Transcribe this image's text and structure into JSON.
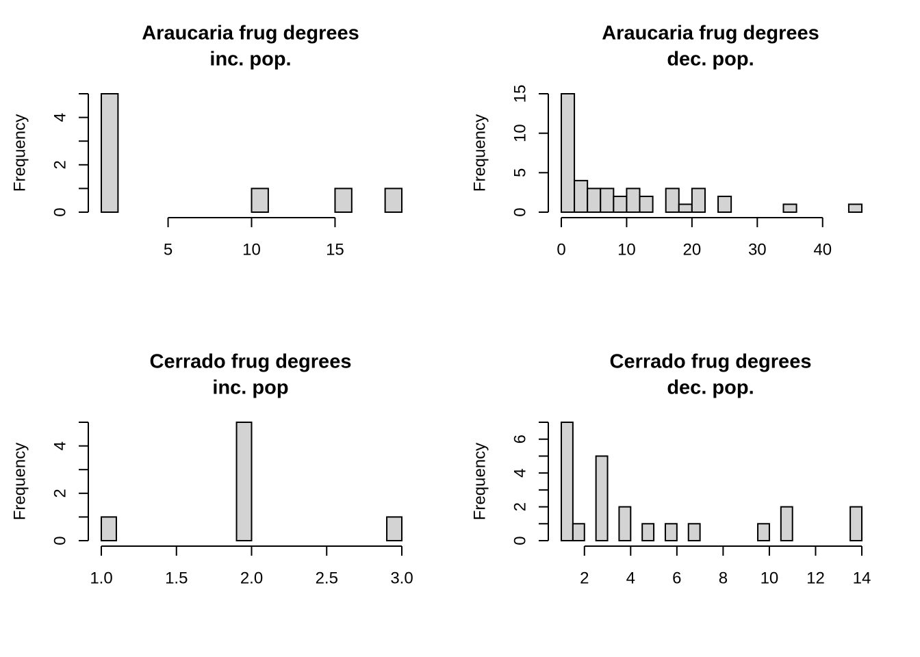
{
  "chart_data": [
    {
      "type": "bar",
      "title_lines": [
        "Araucaria frug degrees",
        "inc. pop."
      ],
      "xlabel": "",
      "ylabel": "Frequency",
      "bin_edges": [
        1,
        2,
        3,
        4,
        5,
        6,
        7,
        8,
        9,
        10,
        11,
        12,
        13,
        14,
        15,
        16,
        17,
        18,
        19
      ],
      "counts": [
        5,
        0,
        0,
        0,
        0,
        0,
        0,
        0,
        0,
        1,
        0,
        0,
        0,
        0,
        1,
        0,
        0,
        1
      ],
      "xlim": [
        1,
        19
      ],
      "ylim": [
        0,
        5
      ],
      "x_ticks": [
        5,
        10,
        15
      ],
      "x_tick_labels": [
        "5",
        "10",
        "15"
      ],
      "y_ticks": [
        0,
        1,
        2,
        3,
        4,
        5
      ],
      "y_tick_labels": [
        "0",
        "2",
        "4"
      ],
      "y_labeled_ticks": [
        0,
        2,
        4
      ]
    },
    {
      "type": "bar",
      "title_lines": [
        "Araucaria frug degrees",
        "dec. pop."
      ],
      "xlabel": "",
      "ylabel": "Frequency",
      "bin_edges": [
        0,
        2,
        4,
        6,
        8,
        10,
        12,
        14,
        16,
        18,
        20,
        22,
        24,
        26,
        28,
        30,
        32,
        34,
        36,
        38,
        40,
        42,
        44,
        46
      ],
      "counts": [
        15,
        4,
        3,
        3,
        2,
        3,
        2,
        0,
        3,
        1,
        3,
        0,
        2,
        0,
        0,
        0,
        0,
        1,
        0,
        0,
        0,
        0,
        1
      ],
      "xlim": [
        0,
        46
      ],
      "ylim": [
        0,
        15
      ],
      "x_ticks": [
        0,
        10,
        20,
        30,
        40
      ],
      "x_tick_labels": [
        "0",
        "10",
        "20",
        "30",
        "40"
      ],
      "y_ticks": [
        0,
        5,
        10,
        15
      ],
      "y_tick_labels": [
        "0",
        "5",
        "10",
        "15"
      ],
      "y_labeled_ticks": [
        0,
        5,
        10,
        15
      ]
    },
    {
      "type": "bar",
      "title_lines": [
        "Cerrado frug degrees",
        "inc. pop"
      ],
      "xlabel": "",
      "ylabel": "Frequency",
      "bin_edges": [
        1.0,
        1.1,
        1.2,
        1.3,
        1.4,
        1.5,
        1.6,
        1.7,
        1.8,
        1.9,
        2.0,
        2.1,
        2.2,
        2.3,
        2.4,
        2.5,
        2.6,
        2.7,
        2.8,
        2.9,
        3.0
      ],
      "counts": [
        1,
        0,
        0,
        0,
        0,
        0,
        0,
        0,
        0,
        5,
        0,
        0,
        0,
        0,
        0,
        0,
        0,
        0,
        0,
        1
      ],
      "xlim": [
        1.0,
        3.0
      ],
      "ylim": [
        0,
        5
      ],
      "x_ticks": [
        1.0,
        1.5,
        2.0,
        2.5,
        3.0
      ],
      "x_tick_labels": [
        "1.0",
        "1.5",
        "2.0",
        "2.5",
        "3.0"
      ],
      "y_ticks": [
        0,
        1,
        2,
        3,
        4,
        5
      ],
      "y_tick_labels": [
        "0",
        "2",
        "4"
      ],
      "y_labeled_ticks": [
        0,
        2,
        4
      ]
    },
    {
      "type": "bar",
      "title_lines": [
        "Cerrado frug degrees",
        "dec. pop."
      ],
      "xlabel": "",
      "ylabel": "Frequency",
      "bin_edges": [
        1.0,
        1.5,
        2.0,
        2.5,
        3.0,
        3.5,
        4.0,
        4.5,
        5.0,
        5.5,
        6.0,
        6.5,
        7.0,
        7.5,
        8.0,
        8.5,
        9.0,
        9.5,
        10.0,
        10.5,
        11.0,
        11.5,
        12.0,
        12.5,
        13.0,
        13.5,
        14.0
      ],
      "counts": [
        7,
        1,
        0,
        5,
        0,
        2,
        0,
        1,
        0,
        1,
        0,
        1,
        0,
        0,
        0,
        0,
        0,
        1,
        0,
        2,
        0,
        0,
        0,
        0,
        0,
        2
      ],
      "xlim": [
        1,
        14
      ],
      "ylim": [
        0,
        7
      ],
      "x_ticks": [
        2,
        4,
        6,
        8,
        10,
        12,
        14
      ],
      "x_tick_labels": [
        "2",
        "4",
        "6",
        "8",
        "10",
        "12",
        "14"
      ],
      "y_ticks": [
        0,
        1,
        2,
        3,
        4,
        5,
        6,
        7
      ],
      "y_tick_labels": [
        "0",
        "2",
        "4",
        "6"
      ],
      "y_labeled_ticks": [
        0,
        2,
        4,
        6
      ]
    }
  ],
  "colors": {
    "bar_fill": "#d3d3d3",
    "bar_stroke": "#000000",
    "background": "#ffffff"
  }
}
